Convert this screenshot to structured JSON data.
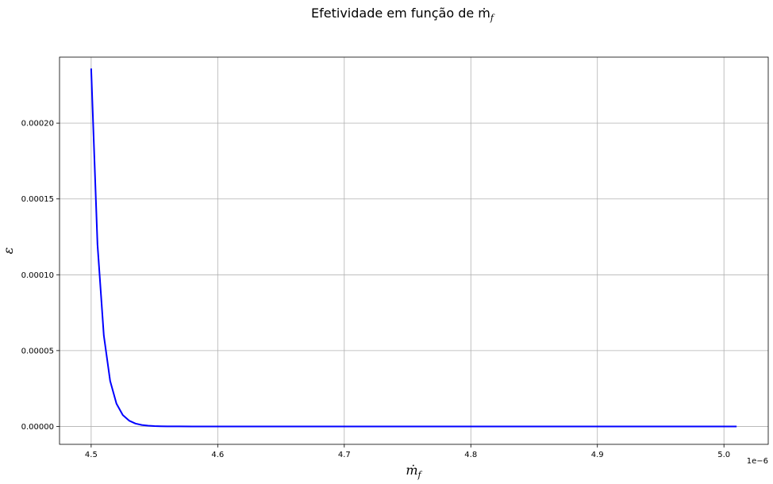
{
  "chart_data": {
    "type": "line",
    "title": "Efetividade em função de ṁ",
    "title_subscript": "f",
    "xlabel": "ṁ",
    "xlabel_subscript": "f",
    "ylabel": "ε",
    "x_offset_label": "1e−6",
    "xlim": [
      4.475,
      5.035
    ],
    "ylim": [
      -1.18e-05,
      0.0002435
    ],
    "xticks": [
      4.5,
      4.6,
      4.7,
      4.8,
      4.9,
      5.0
    ],
    "xtick_labels": [
      "4.5",
      "4.6",
      "4.7",
      "4.8",
      "4.9",
      "5.0"
    ],
    "yticks": [
      0.0,
      5e-05,
      0.0001,
      0.00015,
      0.0002
    ],
    "ytick_labels": [
      "0.00000",
      "0.00005",
      "0.00010",
      "0.00015",
      "0.00020"
    ],
    "grid": true,
    "series": [
      {
        "color": "#0000ff",
        "x": [
          4.5,
          4.505,
          4.51,
          4.515,
          4.52,
          4.525,
          4.53,
          4.535,
          4.54,
          4.545,
          4.55,
          4.555,
          4.56,
          4.57,
          4.58,
          4.6,
          4.65,
          4.7,
          4.8,
          4.9,
          5.0,
          5.01
        ],
        "y": [
          0.000236,
          0.00012,
          6e-05,
          3e-05,
          1.5e-05,
          7.5e-06,
          3.8e-06,
          1.9e-06,
          9.5e-07,
          4.8e-07,
          2.4e-07,
          1.2e-07,
          6e-08,
          1.5e-08,
          4e-09,
          0.0,
          0.0,
          0.0,
          0.0,
          0.0,
          0.0,
          0.0
        ]
      }
    ]
  }
}
